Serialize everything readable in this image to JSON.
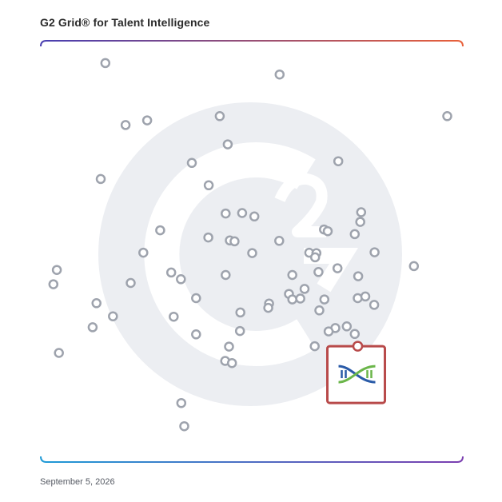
{
  "header": {
    "title": "G2 Grid® for Talent Intelligence"
  },
  "footer": {
    "date": "September 5, 2026"
  },
  "colors": {
    "frame_top_left": "#4a3fb0",
    "frame_top_right": "#e8603a",
    "frame_bottom_left": "#1f9ad6",
    "frame_bottom_right": "#7b3fb0",
    "quadrant_line": "#8a6db8",
    "point_stroke": "#9ea3ad",
    "highlight": "#b84a4a",
    "watermark": "#eceef2",
    "logo_blue": "#2a5ba8",
    "logo_green": "#6bb64a"
  },
  "chart_data": {
    "type": "scatter",
    "title": "G2 Grid® for Talent Intelligence",
    "xlabel": "",
    "ylabel": "",
    "xlim": [
      0,
      100
    ],
    "ylim": [
      0,
      100
    ],
    "grid": "quadrants",
    "series": [
      {
        "points": [
          [
            15.3,
            94.7
          ],
          [
            56.6,
            92.0
          ],
          [
            96.3,
            82.1
          ],
          [
            25.2,
            81.1
          ],
          [
            20.1,
            80.0
          ],
          [
            42.4,
            82.1
          ],
          [
            44.3,
            75.4
          ],
          [
            35.8,
            71.0
          ],
          [
            70.5,
            71.4
          ],
          [
            14.2,
            67.2
          ],
          [
            39.8,
            65.7
          ],
          [
            43.8,
            59.0
          ],
          [
            47.7,
            59.1
          ],
          [
            50.6,
            58.3
          ],
          [
            75.9,
            59.3
          ],
          [
            75.7,
            57.0
          ],
          [
            28.3,
            55.0
          ],
          [
            67.1,
            55.2
          ],
          [
            68.0,
            54.8
          ],
          [
            74.4,
            54.1
          ],
          [
            39.7,
            53.3
          ],
          [
            44.8,
            52.6
          ],
          [
            45.9,
            52.4
          ],
          [
            56.5,
            52.5
          ],
          [
            24.3,
            49.7
          ],
          [
            50.1,
            49.6
          ],
          [
            63.6,
            49.7
          ],
          [
            65.3,
            49.6
          ],
          [
            65.0,
            48.6
          ],
          [
            79.1,
            49.8
          ],
          [
            88.4,
            46.5
          ],
          [
            3.8,
            45.6
          ],
          [
            30.9,
            45.0
          ],
          [
            70.3,
            46.0
          ],
          [
            65.8,
            45.1
          ],
          [
            59.6,
            44.4
          ],
          [
            43.8,
            44.4
          ],
          [
            75.2,
            44.1
          ],
          [
            33.2,
            43.4
          ],
          [
            21.3,
            42.5
          ],
          [
            3.0,
            42.2
          ],
          [
            62.5,
            41.1
          ],
          [
            58.8,
            39.9
          ],
          [
            59.6,
            38.6
          ],
          [
            36.8,
            38.9
          ],
          [
            13.2,
            37.7
          ],
          [
            61.5,
            38.8
          ],
          [
            67.2,
            38.6
          ],
          [
            75.1,
            38.9
          ],
          [
            76.9,
            39.3
          ],
          [
            54.1,
            37.6
          ],
          [
            79.0,
            37.3
          ],
          [
            53.9,
            36.6
          ],
          [
            66.0,
            36.0
          ],
          [
            47.3,
            35.5
          ],
          [
            17.1,
            34.6
          ],
          [
            31.5,
            34.5
          ],
          [
            12.3,
            32.0
          ],
          [
            72.5,
            32.2
          ],
          [
            69.8,
            31.8
          ],
          [
            68.2,
            31.0
          ],
          [
            74.4,
            30.4
          ],
          [
            47.2,
            31.1
          ],
          [
            36.8,
            30.3
          ],
          [
            64.9,
            27.5
          ],
          [
            44.6,
            27.4
          ],
          [
            4.3,
            25.9
          ],
          [
            43.7,
            24.0
          ],
          [
            45.3,
            23.5
          ],
          [
            33.3,
            14.0
          ],
          [
            34.0,
            8.5
          ]
        ]
      }
    ],
    "highlight": {
      "x": 75.1,
      "y": 27.5,
      "product": "Eightfold-style DNA helix logo"
    }
  }
}
